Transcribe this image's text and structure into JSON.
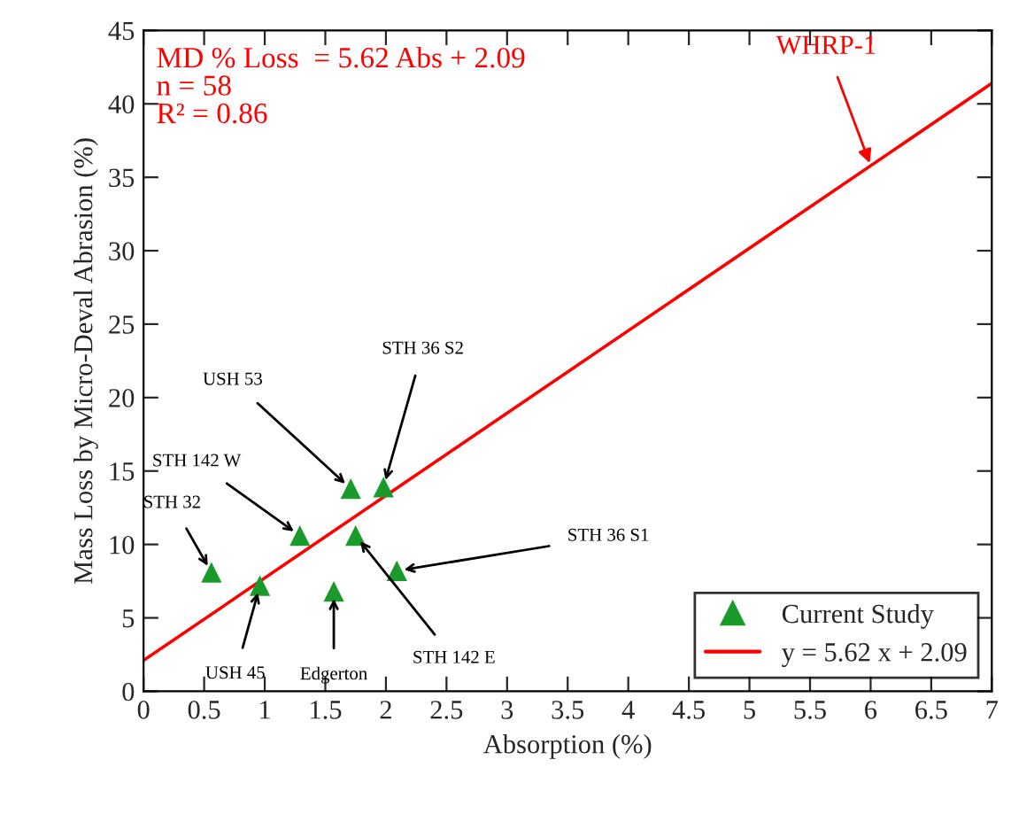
{
  "chart_data": {
    "type": "scatter",
    "xlabel": "Absorption (%)",
    "ylabel": "Mass Loss by Micro-Deval Abrasion (%)",
    "series": [
      {
        "name": "Current Study",
        "color": "#1a9a2a",
        "marker": "triangle",
        "x": [
          0.56,
          0.96,
          1.29,
          1.57,
          1.71,
          1.75,
          1.98,
          2.09
        ],
        "values": [
          8.1,
          7.2,
          10.6,
          6.8,
          13.8,
          10.6,
          13.9,
          8.2
        ]
      },
      {
        "name": "y = 5.62 x + 2.09",
        "type": "line",
        "color": "#ff0000",
        "marker": "none",
        "line_style": "solid",
        "x": [
          0,
          7
        ],
        "values": [
          2.1,
          41.4
        ]
      }
    ],
    "annotations": [
      {
        "text": "STH 32",
        "x": 0.56,
        "y": 8.1
      },
      {
        "text": "USH 45",
        "x": 0.96,
        "y": 7.2
      },
      {
        "text": "STH 142 W",
        "x": 1.29,
        "y": 10.6
      },
      {
        "text": "Edgerton",
        "x": 1.57,
        "y": 6.8
      },
      {
        "text": "USH 53",
        "x": 1.71,
        "y": 13.8
      },
      {
        "text": "STH 142 E",
        "x": 1.75,
        "y": 10.6
      },
      {
        "text": "STH 36 S2",
        "x": 1.98,
        "y": 13.9
      },
      {
        "text": "STH 36 S1",
        "x": 2.09,
        "y": 8.2
      },
      {
        "text": "WHRP-1",
        "x": 6,
        "y": 35.81
      },
      "MD % Loss  = 5.62 Abs + 2.09\nn = 58\nR² = 0.86"
    ],
    "xlim": [
      0,
      7
    ],
    "ylim": [
      0,
      45
    ],
    "xticks": [
      0,
      0.5,
      1,
      1.5,
      2,
      2.5,
      3,
      3.5,
      4,
      4.5,
      5,
      5.5,
      6,
      6.5,
      7
    ],
    "yticks": [
      0,
      5,
      10,
      15,
      20,
      25,
      30,
      35,
      40,
      45
    ],
    "grid": false,
    "legend": "bottom right"
  }
}
